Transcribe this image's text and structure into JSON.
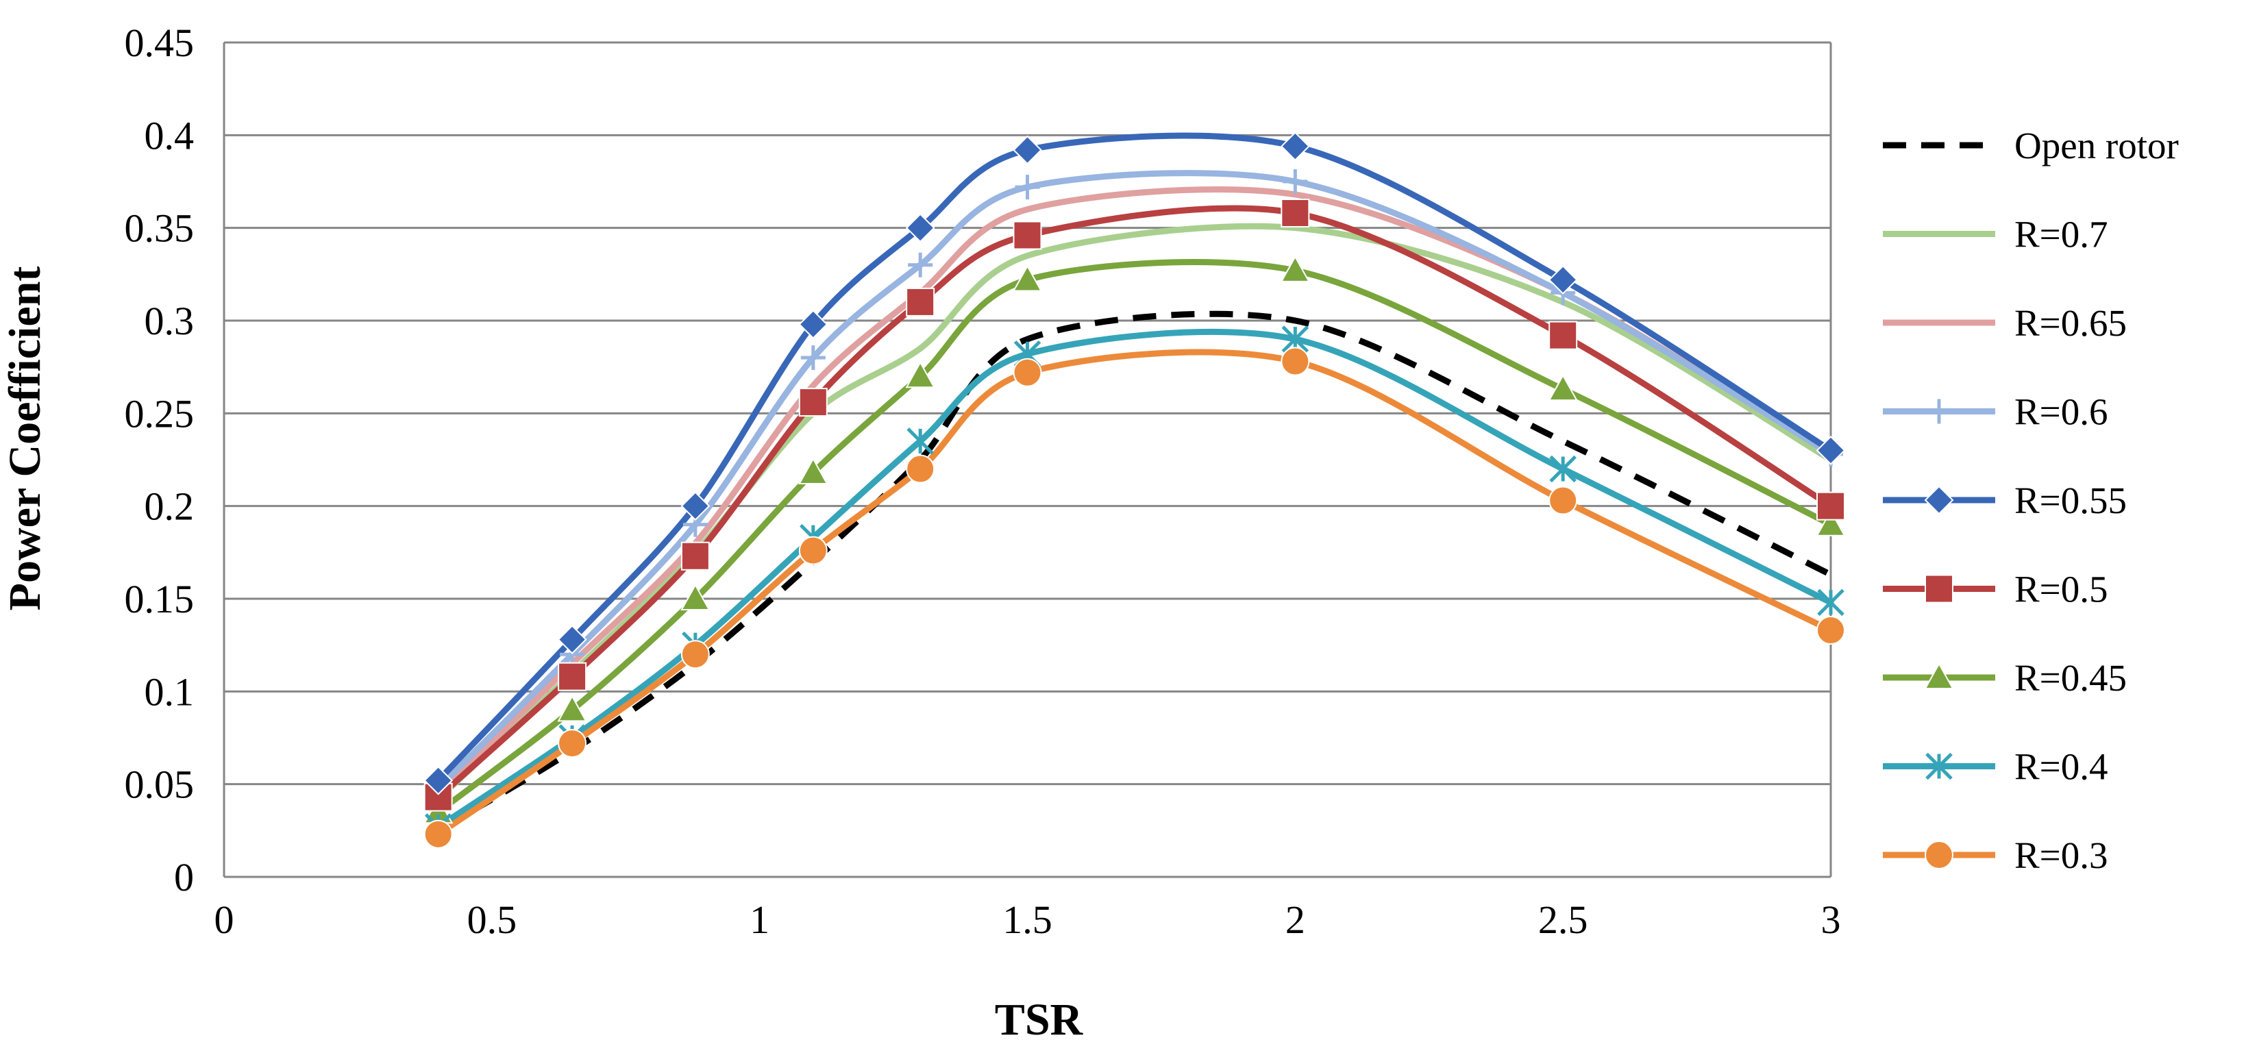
{
  "chart_data": {
    "type": "line",
    "title": "",
    "xlabel": "TSR",
    "ylabel": "Power Coefficient",
    "xlim": [
      0,
      3
    ],
    "ylim": [
      0,
      0.45
    ],
    "x_ticks": [
      "0",
      "0.5",
      "1",
      "1.5",
      "2",
      "2.5",
      "3"
    ],
    "y_ticks": [
      "0",
      "0.05",
      "0.1",
      "0.15",
      "0.2",
      "0.25",
      "0.3",
      "0.35",
      "0.4",
      "0.45"
    ],
    "grid": "horizontal",
    "legend_position": "right",
    "x": [
      0.4,
      0.65,
      0.88,
      1.1,
      1.3,
      1.5,
      2.0,
      2.5,
      3.0
    ],
    "series": [
      {
        "name": "Open rotor",
        "color": "#000000",
        "dashed": true,
        "marker": "none",
        "values": [
          0.025,
          0.068,
          0.115,
          0.17,
          0.225,
          0.29,
          0.3,
          0.235,
          0.163
        ]
      },
      {
        "name": "R=0.7",
        "color": "#a9cf8e",
        "dashed": false,
        "marker": "none",
        "values": [
          0.042,
          0.11,
          0.175,
          0.25,
          0.285,
          0.335,
          0.35,
          0.31,
          0.225
        ]
      },
      {
        "name": "R=0.65",
        "color": "#e0a0a0",
        "dashed": false,
        "marker": "none",
        "values": [
          0.045,
          0.115,
          0.18,
          0.265,
          0.315,
          0.36,
          0.368,
          0.315,
          0.228
        ]
      },
      {
        "name": "R=0.6",
        "color": "#98b4e0",
        "dashed": false,
        "marker": "plus",
        "values": [
          0.048,
          0.12,
          0.19,
          0.28,
          0.33,
          0.372,
          0.375,
          0.315,
          0.228
        ]
      },
      {
        "name": "R=0.55",
        "color": "#3867b8",
        "dashed": false,
        "marker": "diamond",
        "values": [
          0.052,
          0.128,
          0.2,
          0.298,
          0.35,
          0.392,
          0.394,
          0.322,
          0.23
        ]
      },
      {
        "name": "R=0.5",
        "color": "#b84040",
        "dashed": false,
        "marker": "square",
        "values": [
          0.043,
          0.108,
          0.173,
          0.256,
          0.31,
          0.346,
          0.358,
          0.292,
          0.2
        ]
      },
      {
        "name": "R=0.45",
        "color": "#79a53c",
        "dashed": false,
        "marker": "triangle",
        "values": [
          0.035,
          0.09,
          0.15,
          0.218,
          0.27,
          0.322,
          0.327,
          0.263,
          0.19
        ]
      },
      {
        "name": "R=0.4",
        "color": "#36a4b8",
        "dashed": false,
        "marker": "star",
        "values": [
          0.027,
          0.075,
          0.125,
          0.183,
          0.235,
          0.282,
          0.29,
          0.22,
          0.148
        ]
      },
      {
        "name": "R=0.3",
        "color": "#ec8a3a",
        "dashed": false,
        "marker": "circle",
        "values": [
          0.023,
          0.072,
          0.12,
          0.176,
          0.22,
          0.272,
          0.278,
          0.203,
          0.133
        ]
      }
    ]
  }
}
